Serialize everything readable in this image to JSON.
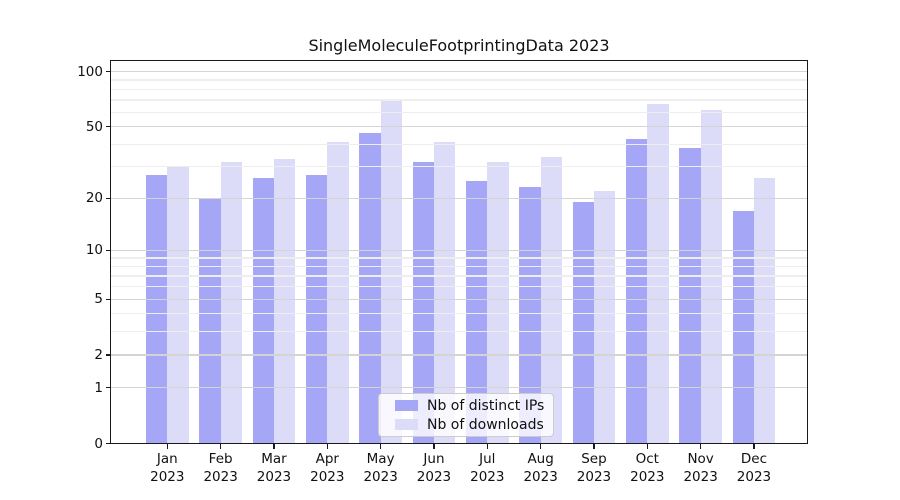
{
  "title": "SingleMoleculeFootprintingData 2023",
  "legend": {
    "items": [
      {
        "label": "Nb of distinct IPs",
        "color": "#a6a6f7"
      },
      {
        "label": "Nb of downloads",
        "color": "#dcdcf8"
      }
    ]
  },
  "y_axis": {
    "tick_labels": [
      "100",
      "50",
      "20",
      "10",
      "5",
      "2",
      "1",
      "0"
    ],
    "tick_values": [
      100,
      50,
      20,
      10,
      5,
      2,
      1,
      0
    ],
    "minor_tick_values": [
      3,
      4,
      6,
      7,
      8,
      9,
      30,
      40,
      60,
      70,
      80,
      90
    ]
  },
  "x_axis": {
    "categories": [
      {
        "month": "Jan",
        "year": "2023"
      },
      {
        "month": "Feb",
        "year": "2023"
      },
      {
        "month": "Mar",
        "year": "2023"
      },
      {
        "month": "Apr",
        "year": "2023"
      },
      {
        "month": "May",
        "year": "2023"
      },
      {
        "month": "Jun",
        "year": "2023"
      },
      {
        "month": "Jul",
        "year": "2023"
      },
      {
        "month": "Aug",
        "year": "2023"
      },
      {
        "month": "Sep",
        "year": "2023"
      },
      {
        "month": "Oct",
        "year": "2023"
      },
      {
        "month": "Nov",
        "year": "2023"
      },
      {
        "month": "Dec",
        "year": "2023"
      }
    ]
  },
  "chart_data": {
    "type": "bar",
    "title": "SingleMoleculeFootprintingData 2023",
    "categories": [
      "Jan 2023",
      "Feb 2023",
      "Mar 2023",
      "Apr 2023",
      "May 2023",
      "Jun 2023",
      "Jul 2023",
      "Aug 2023",
      "Sep 2023",
      "Oct 2023",
      "Nov 2023",
      "Dec 2023"
    ],
    "series": [
      {
        "name": "Nb of distinct IPs",
        "color": "#a6a6f7",
        "values": [
          27,
          20,
          26,
          27,
          46,
          32,
          25,
          23,
          19,
          43,
          38,
          17
        ]
      },
      {
        "name": "Nb of downloads",
        "color": "#dcdcf8",
        "values": [
          30,
          32,
          33,
          41,
          70,
          41,
          32,
          34,
          22,
          67,
          62,
          26
        ]
      }
    ],
    "y_scale": "log10(1+x)",
    "y_ticks": [
      0,
      1,
      2,
      5,
      10,
      20,
      50,
      100
    ],
    "ylim": [
      0,
      115
    ],
    "grid": true,
    "legend_position": "lower center"
  }
}
